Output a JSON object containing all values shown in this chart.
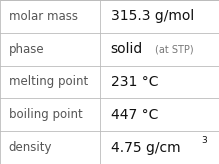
{
  "rows": [
    {
      "label": "molar mass",
      "value": "315.3 g/mol",
      "suffix": null,
      "superscript": null
    },
    {
      "label": "phase",
      "value": "solid",
      "suffix": " (at STP)",
      "superscript": null
    },
    {
      "label": "melting point",
      "value": "231 °C",
      "suffix": null,
      "superscript": null
    },
    {
      "label": "boiling point",
      "value": "447 °C",
      "suffix": null,
      "superscript": null
    },
    {
      "label": "density",
      "value": "4.75 g/cm",
      "suffix": null,
      "superscript": "3"
    }
  ],
  "background_color": "#ffffff",
  "border_color": "#bbbbbb",
  "label_color": "#555555",
  "value_color": "#111111",
  "suffix_color": "#777777",
  "label_fontsize": 8.5,
  "value_fontsize": 10,
  "suffix_fontsize": 7,
  "superscript_fontsize": 6.5,
  "col_split": 0.455,
  "fig_width": 2.19,
  "fig_height": 1.64,
  "dpi": 100
}
